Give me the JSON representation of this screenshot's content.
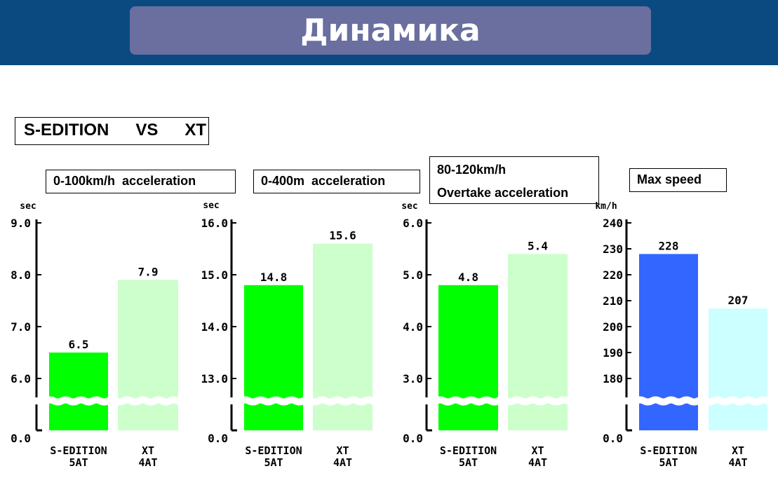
{
  "page": {
    "title": "Динамика",
    "comparison_label": "S-EDITION   VS   XT"
  },
  "colors": {
    "header_bg": "#0b4a80",
    "title_box": "#6a6fa0",
    "s_edition_accel": "#00ff00",
    "xt_accel": "#ccffcc",
    "s_edition_speed": "#3366ff",
    "xt_speed": "#ccffff"
  },
  "chart_data": [
    {
      "type": "bar",
      "title_lines": [
        "0-100km/h  acceleration"
      ],
      "unit": "sec",
      "categories": [
        [
          "S-EDITION",
          "5AT"
        ],
        [
          "XT",
          "4AT"
        ]
      ],
      "values": [
        6.5,
        7.9
      ],
      "value_labels": [
        "6.5",
        "7.9"
      ],
      "yticks": [
        6.0,
        7.0,
        8.0,
        9.0
      ],
      "ytick_labels": [
        "6.0",
        "7.0",
        "8.0",
        "9.0"
      ],
      "y_zero_label": "0.0",
      "axis_break": true,
      "colors": [
        "#00ff00",
        "#ccffcc"
      ]
    },
    {
      "type": "bar",
      "title_lines": [
        "0-400m  acceleration"
      ],
      "unit": "sec",
      "categories": [
        [
          "S-EDITION",
          "5AT"
        ],
        [
          "XT",
          "4AT"
        ]
      ],
      "values": [
        14.8,
        15.6
      ],
      "value_labels": [
        "14.8",
        "15.6"
      ],
      "yticks": [
        13.0,
        14.0,
        15.0,
        16.0
      ],
      "ytick_labels": [
        "13.0",
        "14.0",
        "15.0",
        "16.0"
      ],
      "y_zero_label": "0.0",
      "axis_break": true,
      "colors": [
        "#00ff00",
        "#ccffcc"
      ]
    },
    {
      "type": "bar",
      "title_lines": [
        "80-120km/h",
        "Overtake acceleration"
      ],
      "unit": "sec",
      "categories": [
        [
          "S-EDITION",
          "5AT"
        ],
        [
          "XT",
          "4AT"
        ]
      ],
      "values": [
        4.8,
        5.4
      ],
      "value_labels": [
        "4.8",
        "5.4"
      ],
      "yticks": [
        3.0,
        4.0,
        5.0,
        6.0
      ],
      "ytick_labels": [
        "3.0",
        "4.0",
        "5.0",
        "6.0"
      ],
      "y_zero_label": "0.0",
      "axis_break": true,
      "colors": [
        "#00ff00",
        "#ccffcc"
      ]
    },
    {
      "type": "bar",
      "title_lines": [
        "Max speed"
      ],
      "unit": "km/h",
      "categories": [
        [
          "S-EDITION",
          "5AT"
        ],
        [
          "XT",
          "4AT"
        ]
      ],
      "values": [
        228,
        207
      ],
      "value_labels": [
        "228",
        "207"
      ],
      "yticks": [
        180,
        190,
        200,
        210,
        220,
        230,
        240
      ],
      "ytick_labels": [
        "180",
        "190",
        "200",
        "210",
        "220",
        "230",
        "240"
      ],
      "y_zero_label": "0.0",
      "axis_break": true,
      "colors": [
        "#3366ff",
        "#ccffff"
      ]
    }
  ]
}
